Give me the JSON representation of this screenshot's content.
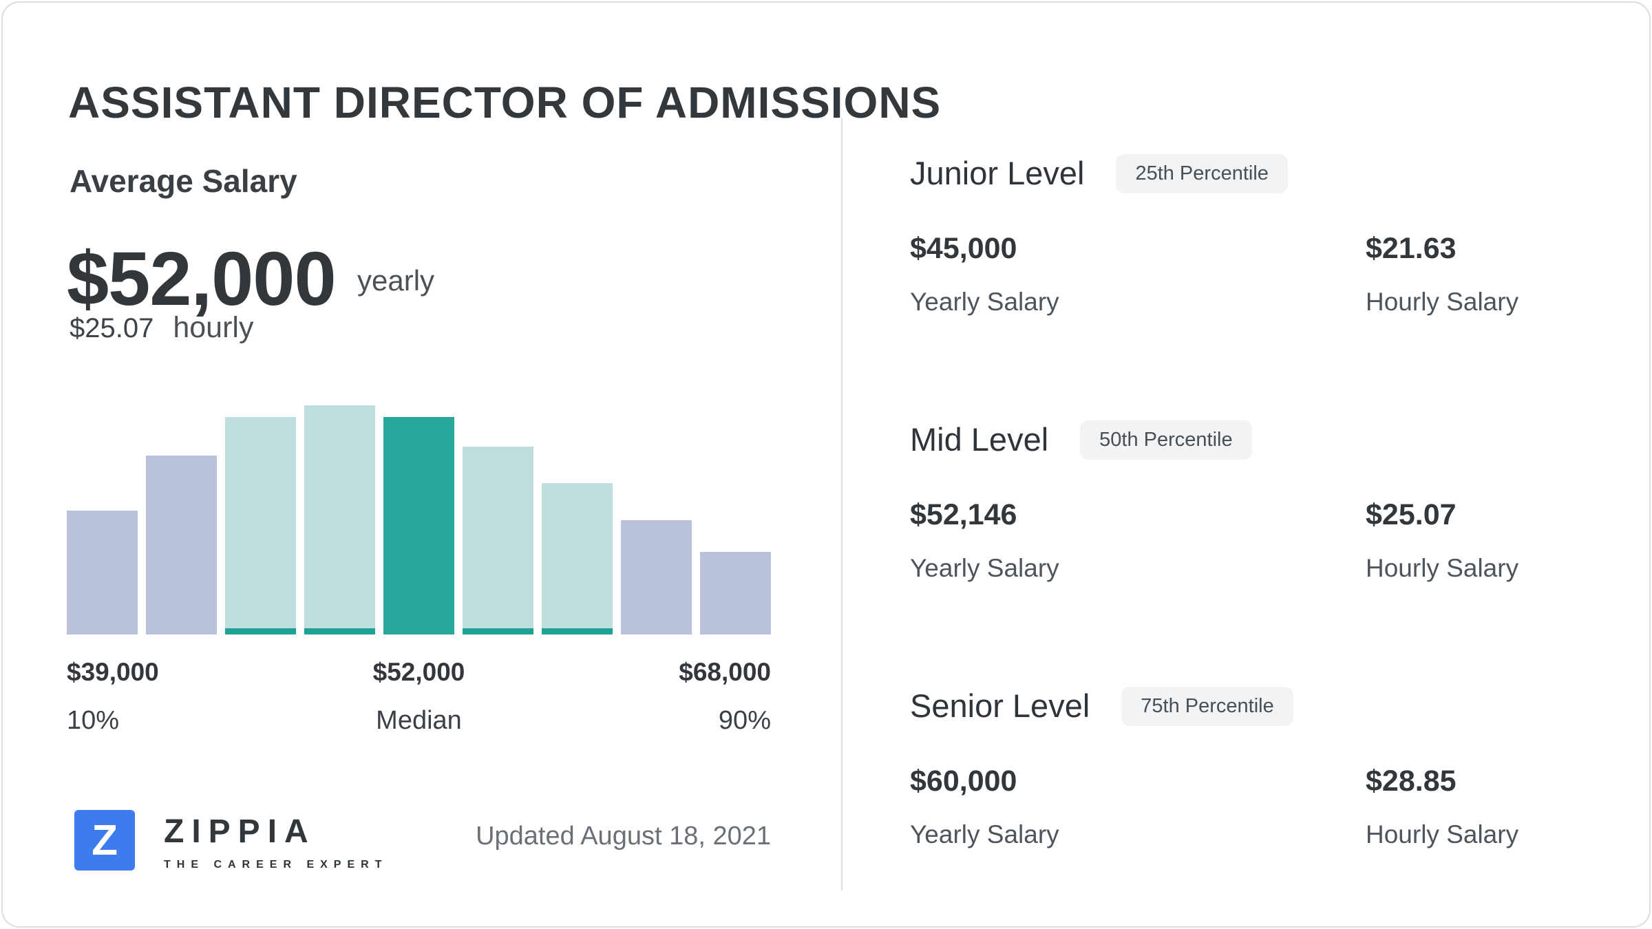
{
  "page": {
    "title": "ASSISTANT DIRECTOR OF ADMISSIONS",
    "updated": "Updated August 18, 2021"
  },
  "average": {
    "label": "Average Salary",
    "yearly_value": "$52,000",
    "yearly_unit": "yearly",
    "hourly_value": "$25.07",
    "hourly_unit": "hourly"
  },
  "chart_data": {
    "type": "bar",
    "title": "Salary distribution histogram",
    "ylim": [
      0,
      100
    ],
    "grid": false,
    "colors": {
      "lavender": "#b9c2da",
      "teal_light": "#bddedc",
      "teal_dark": "#2aa79b",
      "strip": "#1ea294"
    },
    "bars": [
      {
        "height_pct": 54,
        "color": "lavender"
      },
      {
        "height_pct": 78,
        "color": "lavender"
      },
      {
        "height_pct": 95,
        "color": "teal_light"
      },
      {
        "height_pct": 100,
        "color": "teal_light"
      },
      {
        "height_pct": 95,
        "color": "teal_dark"
      },
      {
        "height_pct": 82,
        "color": "teal_light"
      },
      {
        "height_pct": 66,
        "color": "teal_light"
      },
      {
        "height_pct": 50,
        "color": "lavender"
      },
      {
        "height_pct": 36,
        "color": "lavender"
      }
    ],
    "x_axis": {
      "left": {
        "value": "$39,000",
        "label": "10%"
      },
      "center": {
        "value": "$52,000",
        "label": "Median"
      },
      "right": {
        "value": "$68,000",
        "label": "90%"
      }
    }
  },
  "logo": {
    "mark": "Z",
    "brand": "ZIPPIA",
    "tagline": "THE CAREER EXPERT"
  },
  "level_labels": {
    "yearly": "Yearly Salary",
    "hourly": "Hourly Salary"
  },
  "levels": [
    {
      "name": "Junior Level",
      "badge": "25th Percentile",
      "yearly": "$45,000",
      "hourly": "$21.63"
    },
    {
      "name": "Mid Level",
      "badge": "50th Percentile",
      "yearly": "$52,146",
      "hourly": "$25.07"
    },
    {
      "name": "Senior Level",
      "badge": "75th Percentile",
      "yearly": "$60,000",
      "hourly": "$28.85"
    }
  ]
}
